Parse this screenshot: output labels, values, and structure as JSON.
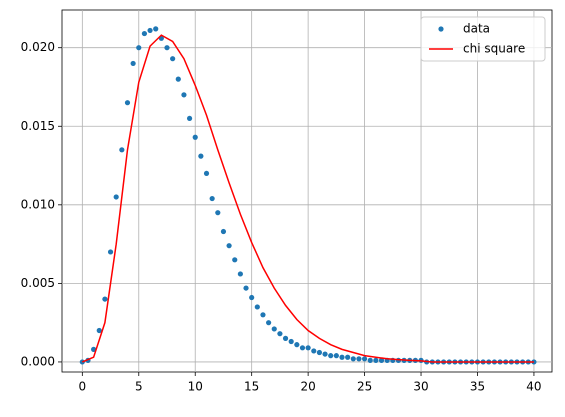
{
  "chart_data": {
    "type": "line",
    "xlim": [
      -1.8,
      41.6
    ],
    "ylim": [
      -0.00064,
      0.0224
    ],
    "xticks": [
      0,
      5,
      10,
      15,
      20,
      25,
      30,
      35,
      40
    ],
    "yticks": [
      {
        "value": 0,
        "label": "0.000"
      },
      0.005,
      {
        "value": 0.01,
        "label": "0.010"
      },
      0.015,
      {
        "value": 0.02,
        "label": "0.020"
      }
    ],
    "grid": true,
    "legend": "upper right",
    "series": [
      {
        "name": "data",
        "style": "markers",
        "color": "#1f77b4",
        "x": [
          0,
          0.5,
          1,
          1.5,
          2,
          2.5,
          3,
          3.5,
          4,
          4.5,
          5,
          5.5,
          6,
          6.5,
          7,
          7.5,
          8,
          8.5,
          9,
          9.5,
          10,
          10.5,
          11,
          11.5,
          12,
          12.5,
          13,
          13.5,
          14,
          14.5,
          15,
          15.5,
          16,
          16.5,
          17,
          17.5,
          18,
          18.5,
          19,
          19.5,
          20,
          20.5,
          21,
          21.5,
          22,
          22.5,
          23,
          23.5,
          24,
          24.5,
          25,
          25.5,
          26,
          26.5,
          27,
          27.5,
          28,
          28.5,
          29,
          29.5,
          30,
          30.5,
          31,
          31.5,
          32,
          32.5,
          33,
          33.5,
          34,
          34.5,
          35,
          35.5,
          36,
          36.5,
          37,
          37.5,
          38,
          38.5,
          39,
          39.5,
          40
        ],
        "values": [
          0,
          0.0001,
          0.0008,
          0.002,
          0.004,
          0.007,
          0.0105,
          0.0135,
          0.0165,
          0.019,
          0.02,
          0.0209,
          0.0211,
          0.0212,
          0.0206,
          0.02,
          0.0193,
          0.018,
          0.017,
          0.0155,
          0.0143,
          0.0131,
          0.012,
          0.0104,
          0.0095,
          0.0083,
          0.0074,
          0.0065,
          0.0056,
          0.0047,
          0.0041,
          0.0035,
          0.003,
          0.0025,
          0.0021,
          0.0018,
          0.0015,
          0.0013,
          0.0011,
          0.0009,
          0.0009,
          0.0007,
          0.0006,
          0.0005,
          0.0004,
          0.0004,
          0.0003,
          0.0003,
          0.0002,
          0.0002,
          0.0002,
          0.0001,
          0.0001,
          0.0001,
          0.0001,
          0.0001,
          0.0001,
          0.0001,
          0.0001,
          0.0001,
          0.0001,
          0,
          0,
          0,
          0,
          0,
          0,
          0,
          0,
          0,
          0,
          0,
          0,
          0,
          0,
          0,
          0,
          0,
          0,
          0,
          0
        ]
      },
      {
        "name": "chi square",
        "style": "line",
        "color": "#ff0000",
        "x": [
          0,
          1,
          2,
          3,
          4,
          5,
          6,
          7,
          8,
          9,
          10,
          11,
          12,
          13,
          14,
          15,
          16,
          17,
          18,
          19,
          20,
          21,
          22,
          23,
          24,
          25,
          26,
          27,
          28,
          29,
          30,
          31,
          32,
          33,
          34,
          35,
          36,
          37,
          38,
          39,
          40
        ],
        "values": [
          0,
          0.0003,
          0.0025,
          0.0075,
          0.0135,
          0.0178,
          0.0201,
          0.0208,
          0.0204,
          0.0193,
          0.0176,
          0.0157,
          0.0135,
          0.0114,
          0.0094,
          0.0076,
          0.006,
          0.0047,
          0.0036,
          0.0027,
          0.002,
          0.0015,
          0.0011,
          0.0008,
          0.0006,
          0.0004,
          0.0003,
          0.0002,
          0.00015,
          0.0001,
          7e-05,
          0,
          0,
          0,
          0,
          0,
          0,
          0,
          0,
          0,
          0
        ]
      }
    ]
  }
}
